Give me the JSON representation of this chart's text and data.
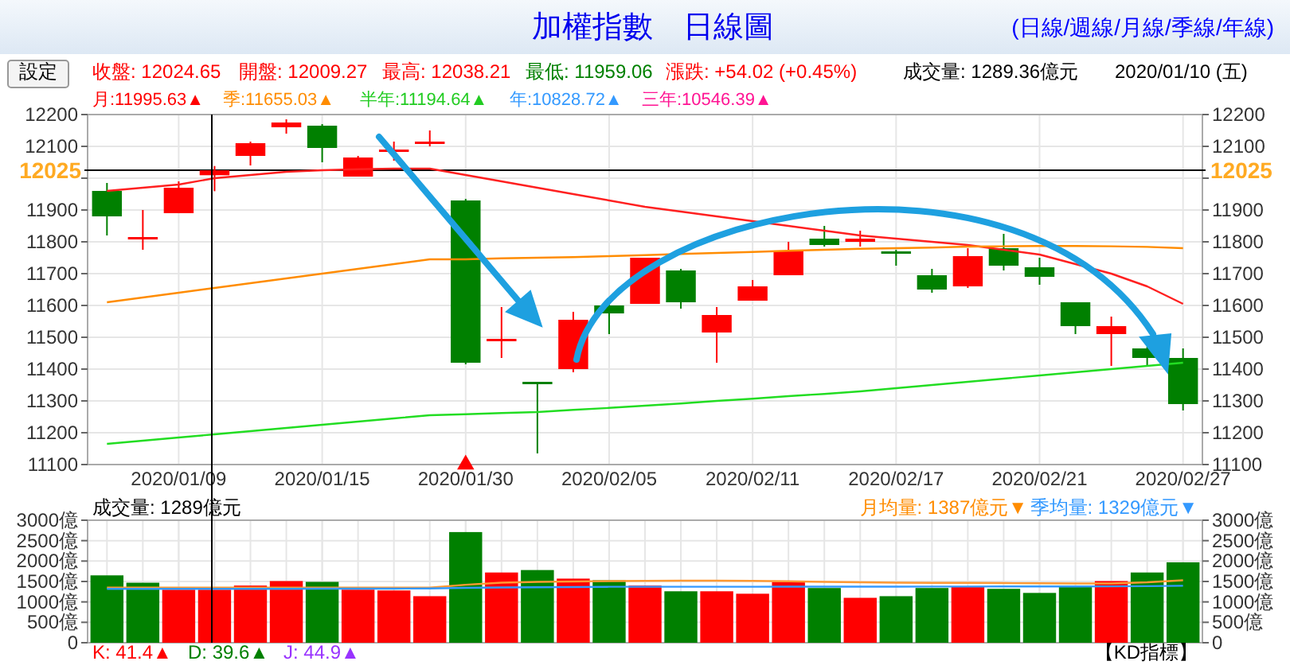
{
  "chart_data": [
    {
      "type": "candlestick",
      "title": "加權指數　日線圖",
      "annotations": [
        "(日線/週線/月線/季線/年線)",
        "設定",
        "收盤: 12024.65",
        "開盤: 12009.27",
        "最高: 12038.21",
        "最低: 11959.06",
        "漲跌: +54.02 (+0.45%)",
        "成交量: 1289.36億元",
        "2020/01/10 (五)",
        "月:11995.63▲",
        "季:11655.03▲",
        "半年:11194.64▲",
        "年:10828.72▲",
        "三年:10546.39▲"
      ],
      "categories": [
        null,
        null,
        "2020/01/09",
        null,
        null,
        null,
        "2020/01/15",
        null,
        null,
        null,
        "2020/01/30",
        null,
        null,
        null,
        "2020/02/05",
        null,
        null,
        null,
        "2020/02/11",
        null,
        null,
        null,
        "2020/02/17",
        null,
        null,
        null,
        "2020/02/21",
        null,
        null,
        null,
        "2020/02/27"
      ],
      "ohlc": [
        [
          11960,
          11985,
          11820,
          11880
        ],
        [
          11815,
          11900,
          11775,
          11815
        ],
        [
          11890,
          11990,
          11890,
          11970
        ],
        [
          12009.27,
          12038.21,
          11959.06,
          12024.65
        ],
        [
          12070,
          12115,
          12040,
          12110
        ],
        [
          12160,
          12185,
          12140,
          12175
        ],
        [
          12165,
          12170,
          12050,
          12095
        ],
        [
          12005,
          12070,
          12005,
          12065
        ],
        [
          12085,
          12115,
          12055,
          12090
        ],
        [
          12110,
          12150,
          12100,
          12115
        ],
        [
          11930,
          11935,
          11415,
          11420
        ],
        [
          11490,
          11595,
          11435,
          11495
        ],
        [
          11360,
          11360,
          11135,
          11355
        ],
        [
          11400,
          11580,
          11390,
          11555
        ],
        [
          11600,
          11615,
          11510,
          11575
        ],
        [
          11605,
          11750,
          11605,
          11750
        ],
        [
          11710,
          11715,
          11590,
          11610
        ],
        [
          11515,
          11595,
          11420,
          11570
        ],
        [
          11615,
          11680,
          11615,
          11660
        ],
        [
          11695,
          11800,
          11695,
          11770
        ],
        [
          11810,
          11850,
          11785,
          11790
        ],
        [
          11800,
          11835,
          11785,
          11810
        ],
        [
          11770,
          11775,
          11725,
          11765
        ],
        [
          11695,
          11715,
          11640,
          11650
        ],
        [
          11660,
          11780,
          11655,
          11755
        ],
        [
          11780,
          11825,
          11710,
          11725
        ],
        [
          11720,
          11750,
          11665,
          11690
        ],
        [
          11610,
          11610,
          11510,
          11535
        ],
        [
          11510,
          11565,
          11410,
          11535
        ],
        [
          11465,
          11470,
          11410,
          11435
        ],
        [
          11435,
          11465,
          11270,
          11290
        ]
      ],
      "series": [
        {
          "type": "line",
          "color": "#ff2020",
          "values": [
            11960,
            11970,
            11980,
            12000,
            12010,
            12020,
            12025,
            12028,
            12030,
            12030,
            12010,
            11990,
            11970,
            11950,
            11930,
            11910,
            11895,
            11880,
            11865,
            11850,
            11835,
            11820,
            11810,
            11800,
            11790,
            11775,
            11760,
            11730,
            11700,
            11660,
            11605
          ]
        },
        {
          "type": "line",
          "color": "#ff8c00",
          "values": [
            11610,
            11625,
            11640,
            11655,
            11670,
            11685,
            11700,
            11715,
            11730,
            11745,
            11745,
            11748,
            11750,
            11752,
            11755,
            11758,
            11762,
            11765,
            11768,
            11772,
            11775,
            11778,
            11780,
            11782,
            11785,
            11786,
            11787,
            11787,
            11786,
            11784,
            11780
          ]
        },
        {
          "type": "line",
          "color": "#22dd22",
          "values": [
            11165,
            11175,
            11185,
            11195,
            11205,
            11215,
            11225,
            11235,
            11245,
            11255,
            11258,
            11262,
            11265,
            11272,
            11278,
            11285,
            11292,
            11300,
            11307,
            11315,
            11322,
            11330,
            11340,
            11350,
            11360,
            11370,
            11380,
            11390,
            11400,
            11410,
            11420
          ]
        },
        {
          "type": "scatter",
          "marker": "triangle",
          "color": "#ff0000",
          "x": [
            "2020/01/30"
          ],
          "values": [
            11100
          ]
        }
      ],
      "ylim": [
        11100,
        12200
      ],
      "yticks": [
        11100,
        11200,
        11300,
        11400,
        11500,
        11600,
        11700,
        11800,
        11900,
        {
          "value": 12000,
          "label": null
        },
        12100,
        12200
      ],
      "y2lim": [
        11100,
        12200
      ],
      "y2ticks": [
        11100,
        11200,
        11300,
        11400,
        11500,
        11600,
        11700,
        11800,
        11900,
        {
          "value": 12000,
          "label": null
        },
        12100,
        12200
      ],
      "ref_lines": [
        {
          "axis": "y",
          "value": 12025,
          "label": "12025",
          "color": "#000000"
        }
      ],
      "grid": true
    },
    {
      "type": "bar",
      "annotations": [
        "成交量: 1289億元",
        "月均量: 1387億元▼",
        "季均量: 1329億元▼",
        "K: 41.4▲",
        "D: 39.6▲",
        "J: 44.9▲",
        "【KD指標】"
      ],
      "categories": [
        null,
        null,
        null,
        null,
        null,
        null,
        null,
        null,
        null,
        null,
        null,
        null,
        null,
        null,
        null,
        null,
        null,
        null,
        null,
        null,
        null,
        null,
        null,
        null,
        null,
        null,
        null,
        null,
        null,
        null,
        null
      ],
      "values": [
        1650,
        1470,
        1300,
        1300,
        1400,
        1510,
        1490,
        1300,
        1280,
        1140,
        2710,
        1720,
        1780,
        1570,
        1530,
        1400,
        1260,
        1260,
        1200,
        1490,
        1340,
        1100,
        1140,
        1340,
        1370,
        1320,
        1220,
        1370,
        1510,
        1720,
        1970
      ],
      "colors": [
        "#008000",
        "#008000",
        "#ff0000",
        "#ff0000",
        "#ff0000",
        "#ff0000",
        "#008000",
        "#ff0000",
        "#ff0000",
        "#ff0000",
        "#008000",
        "#ff0000",
        "#008000",
        "#ff0000",
        "#008000",
        "#ff0000",
        "#008000",
        "#ff0000",
        "#ff0000",
        "#ff0000",
        "#008000",
        "#ff0000",
        "#008000",
        "#008000",
        "#ff0000",
        "#008000",
        "#008000",
        "#008000",
        "#ff0000",
        "#008000",
        "#008000"
      ],
      "series": [
        {
          "type": "line",
          "color": "#ff9933",
          "values": [
            1350,
            1350,
            1350,
            1350,
            1350,
            1350,
            1350,
            1350,
            1350,
            1350,
            1420,
            1470,
            1490,
            1500,
            1510,
            1515,
            1520,
            1520,
            1515,
            1505,
            1490,
            1480,
            1470,
            1465,
            1465,
            1460,
            1455,
            1450,
            1450,
            1480,
            1530
          ]
        },
        {
          "type": "line",
          "color": "#3399ff",
          "values": [
            1320,
            1320,
            1320,
            1320,
            1320,
            1320,
            1325,
            1325,
            1325,
            1330,
            1345,
            1355,
            1360,
            1365,
            1370,
            1370,
            1370,
            1370,
            1370,
            1372,
            1372,
            1372,
            1372,
            1375,
            1375,
            1378,
            1378,
            1378,
            1380,
            1385,
            1395
          ]
        }
      ],
      "ylim": [
        0,
        3000
      ],
      "yticks": [
        {
          "value": 0,
          "label": "0"
        },
        {
          "value": 500,
          "label": "500億"
        },
        {
          "value": 1000,
          "label": "1000億"
        },
        {
          "value": 1500,
          "label": "1500億"
        },
        {
          "value": 2000,
          "label": "2000億"
        },
        {
          "value": 2500,
          "label": "2500億"
        },
        {
          "value": 3000,
          "label": "3000億"
        }
      ],
      "y2lim": [
        0,
        3000
      ],
      "y2ticks": [
        {
          "value": 0,
          "label": "0"
        },
        {
          "value": 500,
          "label": "500億"
        },
        {
          "value": 1000,
          "label": "1000億"
        },
        {
          "value": 1500,
          "label": "1500億"
        },
        {
          "value": 2000,
          "label": "2000億"
        },
        {
          "value": 2500,
          "label": "2500億"
        },
        {
          "value": 3000,
          "label": "3000億"
        }
      ],
      "grid": true
    }
  ]
}
